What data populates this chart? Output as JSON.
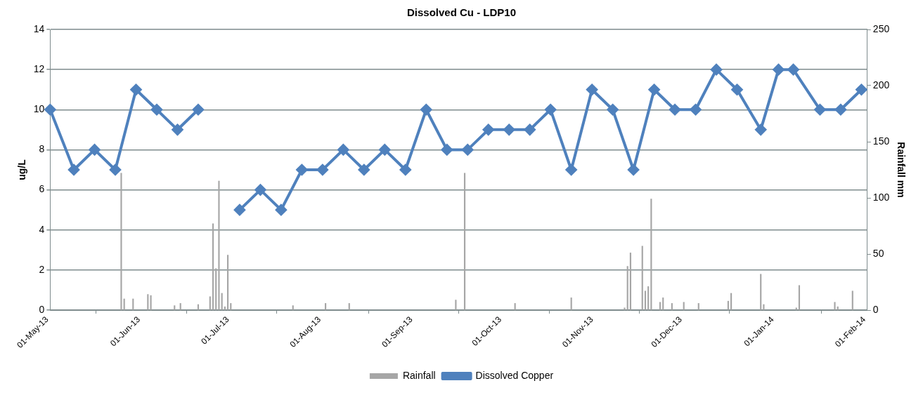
{
  "chart_data": {
    "type": "line",
    "title": "Dissolved Cu - LDP10",
    "ylabel": "ug/L",
    "y2label": "Rainfall mm",
    "xlim": [
      "2013-05-01",
      "2014-02-01"
    ],
    "xticks": [
      {
        "value": "2013-05-01",
        "label": "01-May-13"
      },
      {
        "value": "2013-06-01",
        "label": "01-Jun-13"
      },
      {
        "value": "2013-07-01",
        "label": "01-Jul-13"
      },
      {
        "value": "2013-08-01",
        "label": "01-Aug-13"
      },
      {
        "value": "2013-09-01",
        "label": "01-Sep-13"
      },
      {
        "value": "2013-10-01",
        "label": "01-Oct-13"
      },
      {
        "value": "2013-11-01",
        "label": "01-Nov-13"
      },
      {
        "value": "2013-12-01",
        "label": "01-Dec-13"
      },
      {
        "value": "2014-01-01",
        "label": "01-Jan-14"
      },
      {
        "value": "2014-02-01",
        "label": "01-Feb-14"
      }
    ],
    "ylim": [
      0,
      14
    ],
    "yticks": [
      0,
      2,
      4,
      6,
      8,
      10,
      12,
      14
    ],
    "y2lim": [
      0,
      250
    ],
    "y2ticks": [
      0,
      50,
      100,
      150,
      200,
      250
    ],
    "grid": "y",
    "legend": "bottom",
    "series": [
      {
        "name": "Rainfall",
        "type": "bar",
        "axis": "y2",
        "color": "#a6a6a6",
        "x": [
          "2013-05-25",
          "2013-05-26",
          "2013-05-29",
          "2013-06-03",
          "2013-06-04",
          "2013-06-12",
          "2013-06-14",
          "2013-06-20",
          "2013-06-24",
          "2013-06-25",
          "2013-06-26",
          "2013-06-27",
          "2013-06-28",
          "2013-06-29",
          "2013-06-30",
          "2013-07-01",
          "2013-07-22",
          "2013-08-02",
          "2013-08-10",
          "2013-09-15",
          "2013-09-18",
          "2013-10-05",
          "2013-10-24",
          "2013-11-01",
          "2013-11-11",
          "2013-11-12",
          "2013-11-13",
          "2013-11-17",
          "2013-11-18",
          "2013-11-19",
          "2013-11-20",
          "2013-11-23",
          "2013-11-24",
          "2013-11-27",
          "2013-12-01",
          "2013-12-06",
          "2013-12-16",
          "2013-12-17",
          "2013-12-27",
          "2013-12-28",
          "2014-01-08",
          "2014-01-09",
          "2014-01-21",
          "2014-01-22",
          "2014-01-27"
        ],
        "values": [
          122,
          10,
          10,
          14,
          13,
          4,
          6,
          5,
          12,
          77,
          37,
          115,
          15,
          3,
          49,
          6,
          4,
          6,
          6,
          9,
          122,
          6,
          11,
          null,
          2,
          39,
          51,
          57,
          17,
          21,
          99,
          7,
          11,
          6,
          7,
          6,
          8,
          15,
          32,
          5,
          2,
          22,
          7,
          3,
          17
        ]
      },
      {
        "name": "Dissolved Copper",
        "color": "#4f81bd",
        "marker": "diamond",
        "line_style": "solid",
        "x": [
          "2013-05-01",
          "2013-05-09",
          "2013-05-16",
          "2013-05-23",
          "2013-05-30",
          "2013-06-06",
          "2013-06-13",
          "2013-06-20",
          "2013-06-27",
          "2013-07-04",
          "2013-07-11",
          "2013-07-18",
          "2013-07-25",
          "2013-08-01",
          "2013-08-08",
          "2013-08-15",
          "2013-08-22",
          "2013-08-29",
          "2013-09-05",
          "2013-09-12",
          "2013-09-19",
          "2013-09-26",
          "2013-10-03",
          "2013-10-10",
          "2013-10-17",
          "2013-10-24",
          "2013-10-31",
          "2013-11-07",
          "2013-11-14",
          "2013-11-21",
          "2013-11-28",
          "2013-12-05",
          "2013-12-12",
          "2013-12-19",
          "2013-12-27",
          "2014-01-02",
          "2014-01-07",
          "2014-01-16",
          "2014-01-23",
          "2014-01-30"
        ],
        "values": [
          10,
          7,
          8,
          7,
          11,
          10,
          9,
          10,
          null,
          5,
          6,
          5,
          7,
          7,
          8,
          7,
          8,
          7,
          10,
          8,
          8,
          9,
          9,
          9,
          10,
          7,
          11,
          10,
          7,
          11,
          10,
          10,
          12,
          11,
          9,
          12,
          12,
          10,
          10,
          11
        ]
      }
    ]
  }
}
